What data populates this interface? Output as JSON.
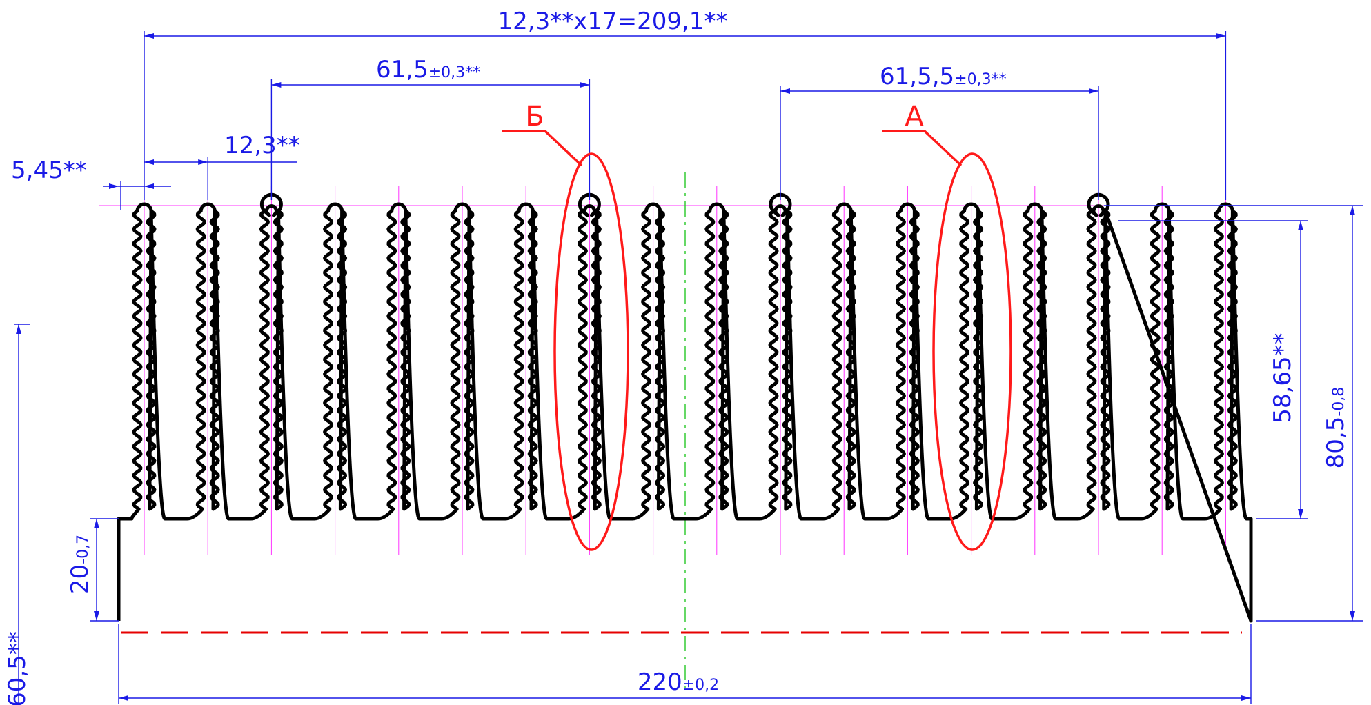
{
  "colors": {
    "outline": "#000000",
    "dimension": "#1a1ae6",
    "axis": "#ff33ff",
    "centerline": "#33cc33",
    "callout": "#ff1a1a"
  },
  "profile": {
    "fin_count": 18,
    "pitch_total": {
      "main": "12,3**x17=209,1**"
    },
    "pitch_a": {
      "main": "61,5",
      "tol": "±0,3**"
    },
    "pitch_b": {
      "main": "61,5,5",
      "tol": "±0,3**"
    },
    "pitch": {
      "main": "12,3**"
    },
    "edge": {
      "main": "5,45**"
    },
    "fin_height": {
      "main": "58,65**"
    },
    "total_height": {
      "main": "80,5",
      "tol": "-0,8"
    },
    "base_height": {
      "main": "20",
      "tol": "-0,7"
    },
    "width": {
      "main": "220",
      "tol": "±0,2"
    },
    "left_cut": {
      "main": "60,5**"
    }
  },
  "callouts": {
    "detail_b": "Б",
    "detail_a": "А"
  }
}
